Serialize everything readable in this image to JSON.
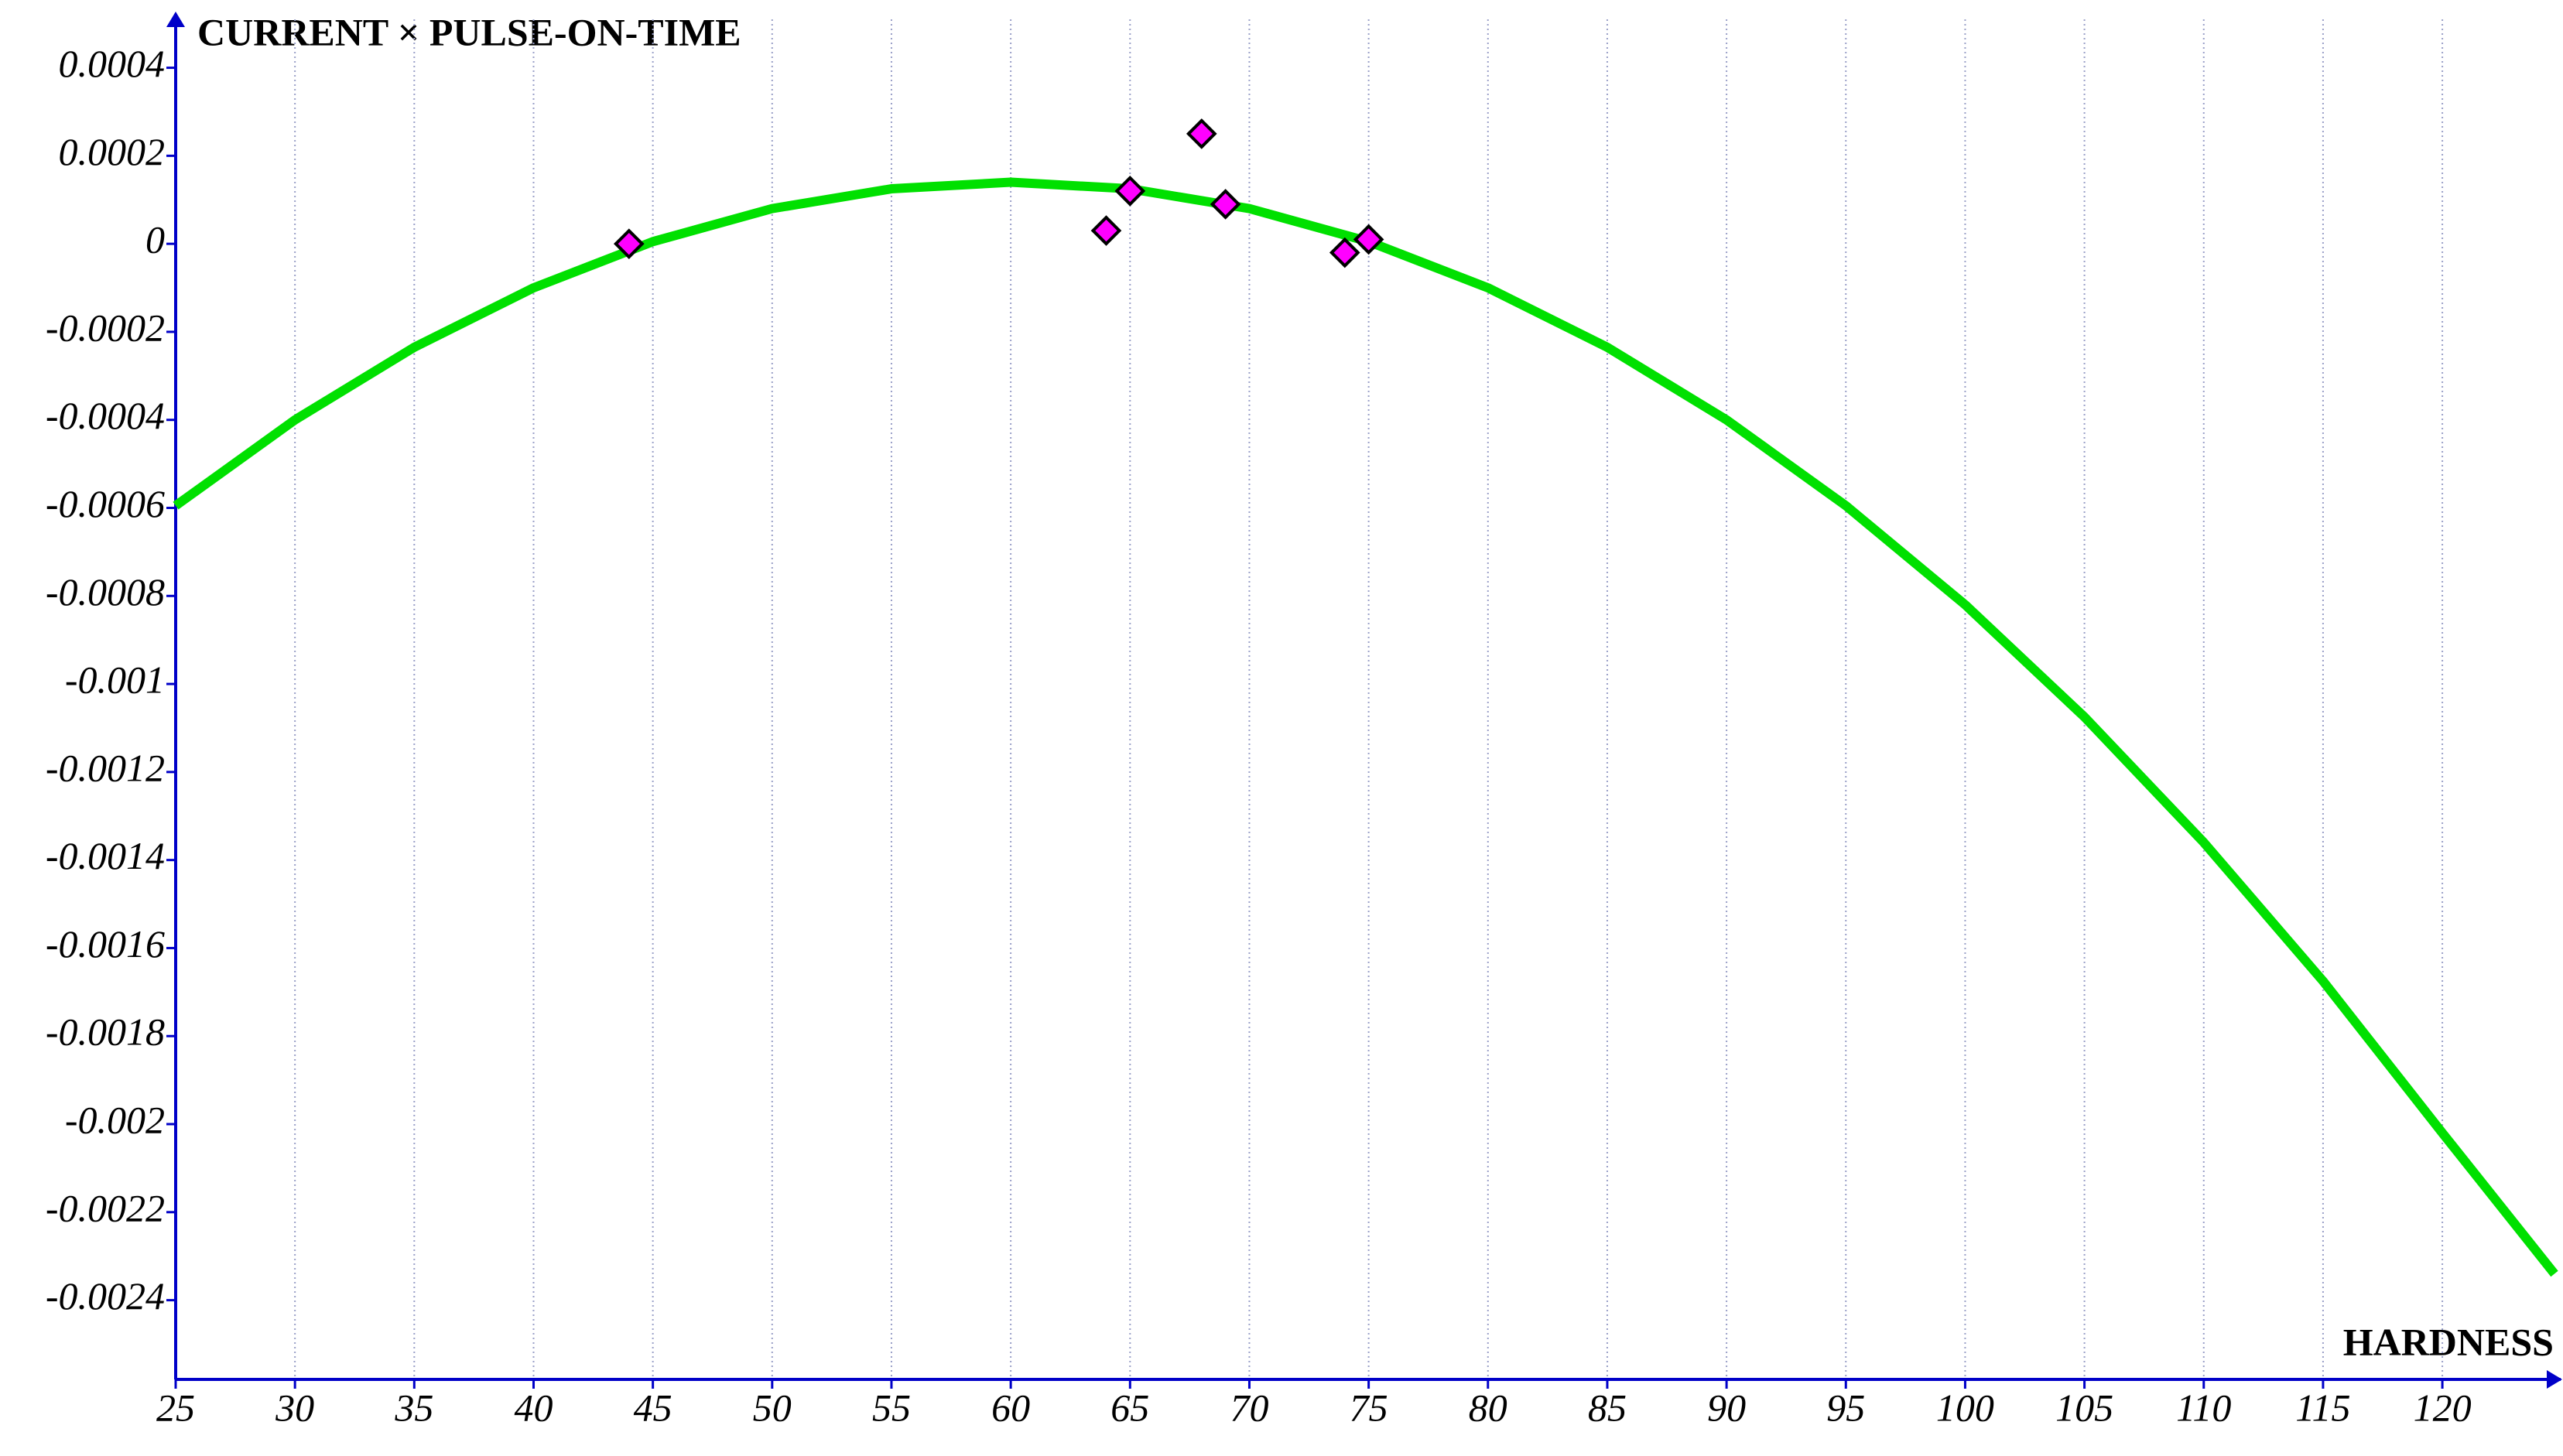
{
  "chart_data": {
    "type": "scatter",
    "x_label": "HARDNESS",
    "y_label": "CURRENT × PULSE-ON-TIME",
    "xlim": [
      25,
      124.7
    ],
    "ylim": [
      -0.00258,
      0.00051
    ],
    "xticks": [
      25,
      30,
      35,
      40,
      45,
      50,
      55,
      60,
      65,
      70,
      75,
      80,
      85,
      90,
      95,
      100,
      105,
      110,
      115,
      120
    ],
    "yticks": [
      0.0004,
      0.0002,
      0,
      -0.0002,
      -0.0004,
      -0.0006,
      -0.0008,
      -0.001,
      -0.0012,
      -0.0014,
      -0.0016,
      -0.0018,
      -0.002,
      -0.0022,
      -0.0024
    ],
    "grid": true,
    "series": [
      {
        "type": "scatter",
        "color": "#ff00ff",
        "x": [
          44,
          64,
          65,
          68,
          69,
          74,
          75
        ],
        "values": [
          0,
          3e-05,
          0.00012,
          0.00025,
          9e-05,
          -2e-05,
          1e-05
        ]
      },
      {
        "type": "line",
        "color": "#00e000",
        "x": [
          25,
          30,
          35,
          40,
          45,
          50,
          55,
          60,
          65,
          70,
          75,
          80,
          85,
          90,
          95,
          100,
          105,
          110,
          115,
          120,
          124.7
        ],
        "values": [
          -0.000595,
          -0.0004,
          -0.000235,
          -0.0001,
          5e-06,
          8e-05,
          0.000125,
          0.00014,
          0.000125,
          8e-05,
          5e-06,
          -0.0001,
          -0.000235,
          -0.0004,
          -0.000595,
          -0.00082,
          -0.001075,
          -0.00136,
          -0.001675,
          -0.00202,
          -0.00234
        ]
      }
    ]
  }
}
